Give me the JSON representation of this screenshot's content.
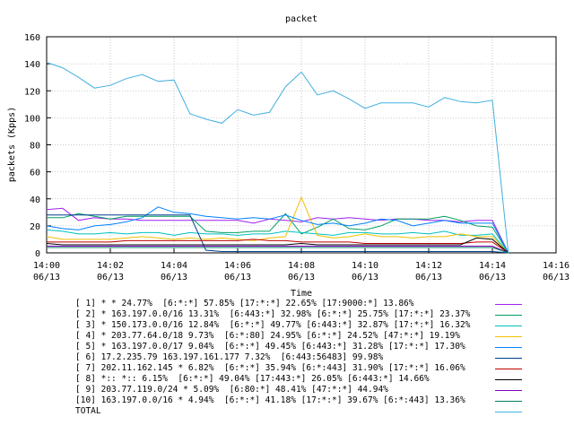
{
  "chart_data": {
    "type": "line",
    "title": "packet",
    "xlabel": "Time",
    "ylabel": "packets (Kpps)",
    "ylim": [
      0,
      160
    ],
    "yticks": [
      0,
      20,
      40,
      60,
      80,
      100,
      120,
      140,
      160
    ],
    "ytick_labels": [
      "0",
      "20",
      "40",
      "60",
      "80",
      "100",
      "120",
      "140",
      "160"
    ],
    "xlim": [
      0,
      16
    ],
    "xticks": [
      0,
      2,
      4,
      6,
      8,
      10,
      12,
      14,
      16
    ],
    "xtick_labels": [
      [
        "14:00",
        "06/13"
      ],
      [
        "14:02",
        "06/13"
      ],
      [
        "14:04",
        "06/13"
      ],
      [
        "14:06",
        "06/13"
      ],
      [
        "14:08",
        "06/13"
      ],
      [
        "14:10",
        "06/13"
      ],
      [
        "14:12",
        "06/13"
      ],
      [
        "14:14",
        "06/13"
      ],
      [
        "14:16",
        "06/13"
      ]
    ],
    "grid": true,
    "x": [
      0,
      0.5,
      1,
      1.5,
      2,
      2.5,
      3,
      3.5,
      4,
      4.5,
      5,
      5.5,
      6,
      6.5,
      7,
      7.5,
      8,
      8.5,
      9,
      9.5,
      10,
      10.5,
      11,
      11.5,
      12,
      12.5,
      13,
      13.5,
      14,
      14.5
    ],
    "series": [
      {
        "name": "[ 1] * * 24.77%  [6:*:*] 57.85% [17:*:*] 22.65% [17:9000:*] 13.86%",
        "color": "#a020f0",
        "values": [
          32,
          33,
          24,
          26,
          25,
          25,
          24,
          24,
          24,
          24,
          24,
          24,
          24,
          22,
          25,
          24,
          23,
          26,
          25,
          26,
          25,
          24,
          25,
          25,
          24,
          24,
          23,
          24,
          24,
          0
        ]
      },
      {
        "name": "[ 2] * 163.197.0.0/16 13.31%  [6:443:*] 32.98% [6:*:*] 25.75% [17:*:*] 23.37%",
        "color": "#00a060",
        "values": [
          26,
          26,
          29,
          27,
          25,
          27,
          27,
          27,
          27,
          27,
          16,
          15,
          15,
          16,
          16,
          29,
          14,
          19,
          25,
          18,
          17,
          20,
          25,
          25,
          25,
          27,
          24,
          20,
          19,
          0
        ]
      },
      {
        "name": "[ 3] * 150.173.0.0/16 12.84%  [6:*:*] 49.77% [6:443:*] 32.87% [17:*:*] 16.32%",
        "color": "#00c0c0",
        "values": [
          17,
          16,
          14,
          14,
          15,
          14,
          15,
          15,
          13,
          15,
          14,
          14,
          13,
          14,
          14,
          16,
          15,
          14,
          13,
          15,
          15,
          14,
          14,
          15,
          14,
          16,
          13,
          13,
          14,
          0
        ]
      },
      {
        "name": "[ 4] * 203.77.64.0/18 9.73%  [6:*:80] 24.95% [6:*:*] 24.52% [47:*:*] 19.19%",
        "color": "#f0c000",
        "values": [
          12,
          10,
          10,
          10,
          10,
          11,
          12,
          11,
          10,
          11,
          10,
          11,
          10,
          9,
          11,
          12,
          41,
          13,
          11,
          12,
          14,
          12,
          12,
          11,
          12,
          12,
          14,
          12,
          12,
          0
        ]
      },
      {
        "name": "[ 5] * 163.197.0.0/17 9.04%  [6:*:*] 49.45% [6:443:*] 31.28% [17:*:*] 17.30%",
        "color": "#0080ff",
        "values": [
          20,
          18,
          17,
          20,
          21,
          23,
          26,
          34,
          30,
          29,
          27,
          26,
          25,
          26,
          25,
          28,
          24,
          21,
          22,
          20,
          22,
          25,
          24,
          20,
          22,
          24,
          22,
          22,
          22,
          0
        ]
      },
      {
        "name": "[ 6] 17.2.235.79 163.197.161.177 7.32%  [6:443:56483] 99.98%",
        "color": "#004090",
        "values": [
          28,
          28,
          28,
          28,
          28,
          28,
          28,
          28,
          28,
          28,
          2,
          1,
          1,
          1,
          1,
          1,
          1,
          1,
          1,
          1,
          1,
          1,
          1,
          1,
          1,
          1,
          1,
          1,
          1,
          0
        ]
      },
      {
        "name": "[ 7] 202.11.162.145 * 6.82%  [6:*:*] 35.94% [6:*:443] 31.90% [17:*:*] 16.06%",
        "color": "#c00000",
        "values": [
          8,
          8,
          8,
          8,
          8,
          9,
          9,
          9,
          9,
          9,
          9,
          9,
          9,
          10,
          9,
          9,
          8,
          8,
          8,
          8,
          7,
          7,
          7,
          7,
          7,
          7,
          7,
          8,
          8,
          0
        ]
      },
      {
        "name": "[ 8] *:: *:: 6.15%  [6:*:*] 49.04% [17:443:*] 26.05% [6:443:*] 14.66%",
        "color": "#000000",
        "values": [
          7,
          6,
          6,
          6,
          6,
          6,
          6,
          6,
          6,
          6,
          6,
          6,
          6,
          6,
          6,
          6,
          7,
          6,
          6,
          6,
          6,
          6,
          6,
          6,
          6,
          6,
          6,
          11,
          10,
          0
        ]
      },
      {
        "name": "[ 9] 203.77.119.0/24 * 5.09%  [6:80:*] 48.41% [47:*:*] 44.94%",
        "color": "#8000c0",
        "values": [
          5,
          5,
          5,
          5,
          5,
          5,
          5,
          5,
          5,
          5,
          5,
          5,
          5,
          5,
          5,
          5,
          5,
          5,
          5,
          5,
          5,
          5,
          5,
          5,
          5,
          5,
          5,
          5,
          5,
          0
        ]
      },
      {
        "name": "[10] 163.197.0.0/16 * 4.94%  [6:*:*] 41.18% [17:*:*] 39.67% [6:*:443] 13.36%",
        "color": "#008060",
        "values": [
          4,
          4,
          4,
          4,
          4,
          4,
          4,
          4,
          4,
          4,
          4,
          4,
          4,
          4,
          4,
          4,
          4,
          4,
          4,
          4,
          4,
          4,
          4,
          4,
          4,
          4,
          4,
          4,
          4,
          0
        ]
      },
      {
        "name": "TOTAL",
        "color": "#40b0e0",
        "values": [
          141,
          137,
          130,
          122,
          124,
          129,
          132,
          127,
          128,
          103,
          99,
          96,
          106,
          102,
          104,
          123,
          134,
          117,
          120,
          114,
          107,
          111,
          111,
          111,
          108,
          115,
          112,
          111,
          113,
          0
        ]
      }
    ]
  }
}
